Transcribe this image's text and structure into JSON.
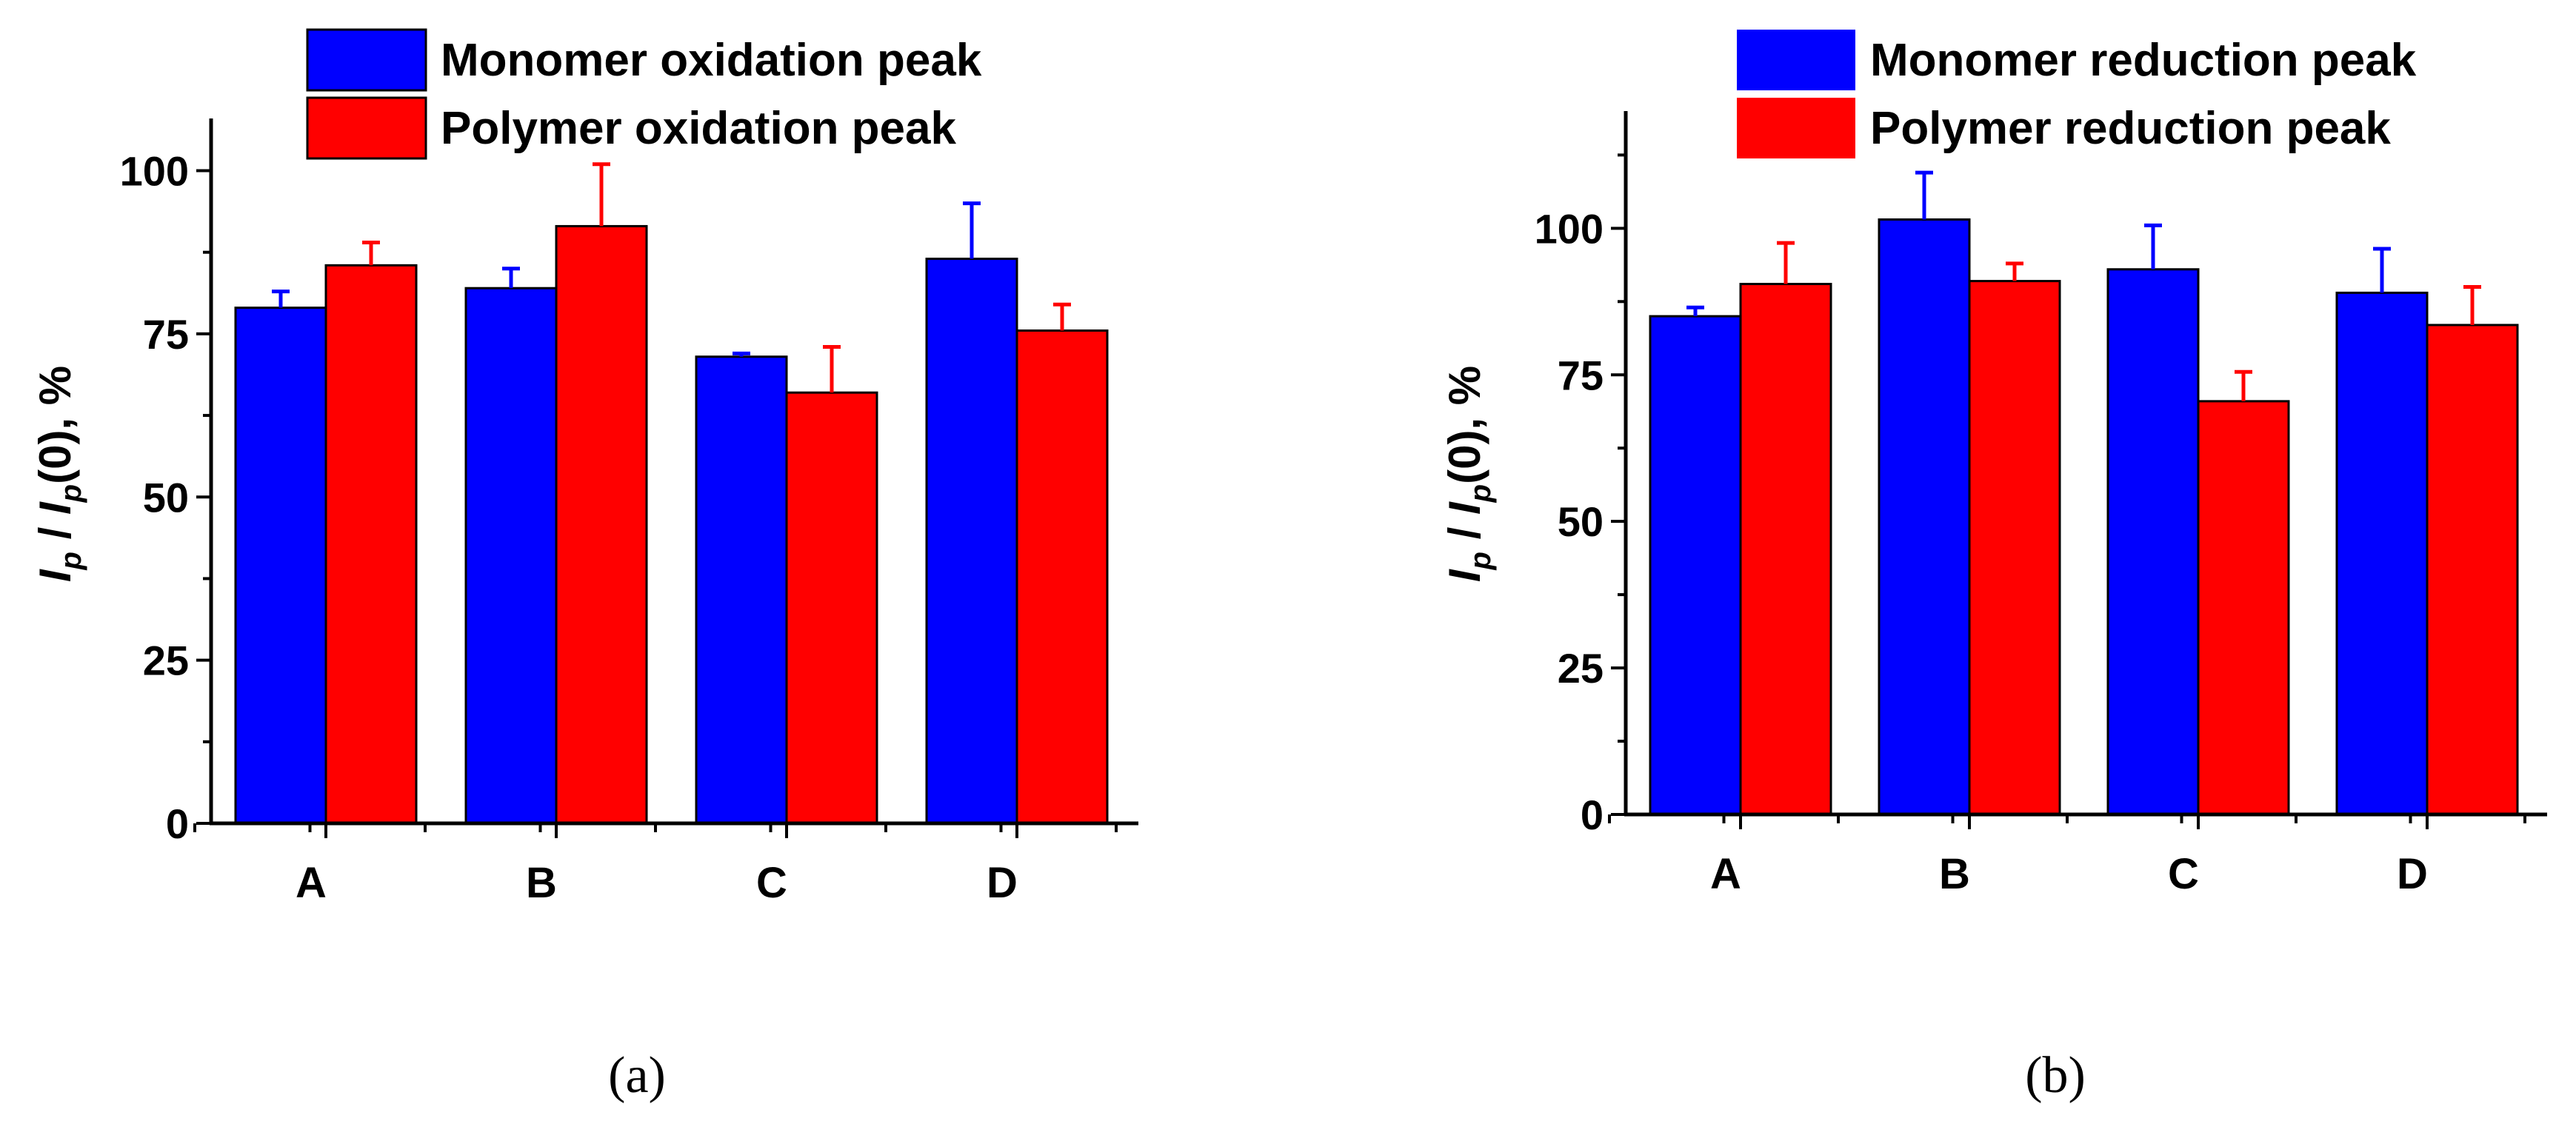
{
  "chart_data": [
    {
      "type": "bar",
      "panel_label": "(a)",
      "categories": [
        "A",
        "B",
        "C",
        "D"
      ],
      "series": [
        {
          "name": "Monomer oxidation peak",
          "color": "#0000ff",
          "values": [
            79,
            82,
            71.5,
            86.5
          ],
          "errors": [
            2.5,
            3,
            0.5,
            8.5
          ]
        },
        {
          "name": "Polymer oxidation peak",
          "color": "#ff0000",
          "values": [
            85.5,
            91.5,
            66,
            75.5
          ],
          "errors": [
            3.5,
            9.5,
            7,
            4
          ]
        }
      ],
      "ylabel": {
        "I1": "I",
        "s1": "p",
        "mid": " / ",
        "I2": "I",
        "s2": "p",
        "tail": "(0), %"
      },
      "ylim": [
        0,
        108
      ],
      "yticks": [
        0,
        25,
        50,
        75,
        100
      ],
      "ytick_labels": [
        "0",
        "25",
        "50",
        "75",
        "100"
      ]
    },
    {
      "type": "bar",
      "panel_label": "(b)",
      "categories": [
        "A",
        "B",
        "C",
        "D"
      ],
      "series": [
        {
          "name": "Monomer reduction peak",
          "color": "#0000ff",
          "values": [
            85,
            101.5,
            93,
            89
          ],
          "errors": [
            1.5,
            8,
            7.5,
            7.5
          ]
        },
        {
          "name": "Polymer reduction peak",
          "color": "#ff0000",
          "values": [
            90.5,
            91,
            70.5,
            83.5
          ],
          "errors": [
            7,
            3,
            5,
            6.5
          ]
        }
      ],
      "ylabel": {
        "I1": "I",
        "s1": "p",
        "mid": " / ",
        "I2": "I",
        "s2": "p",
        "tail": "(0), %"
      },
      "ylim": [
        0,
        120
      ],
      "yticks": [
        0,
        25,
        50,
        75,
        100
      ],
      "ytick_labels": [
        "0",
        "25",
        "50",
        "75",
        "100"
      ]
    }
  ]
}
